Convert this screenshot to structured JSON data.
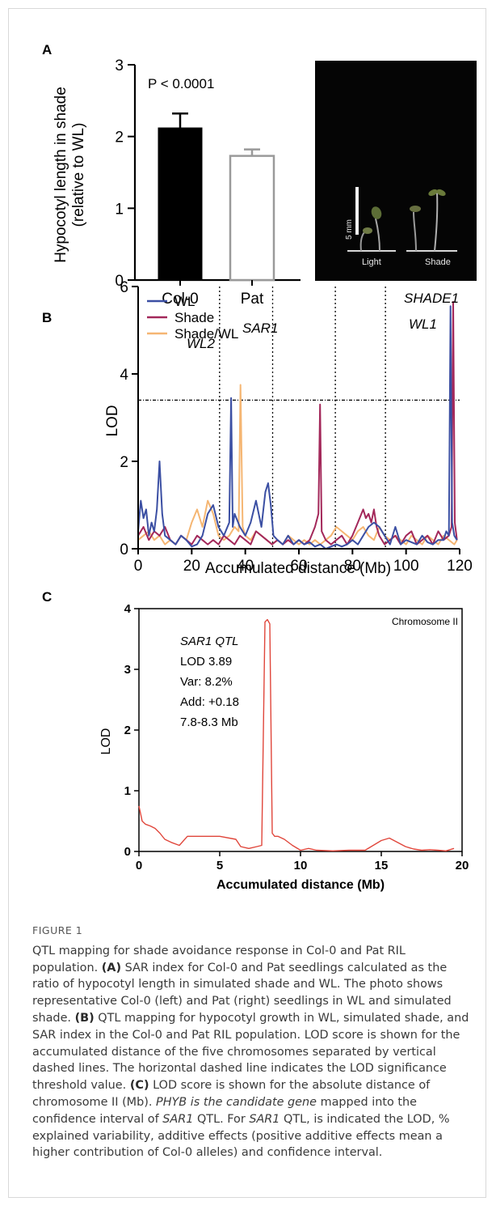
{
  "panel_a": {
    "letter": "A",
    "ylabel_line1": "Hypocotyl length in shade",
    "ylabel_line2": "(relative to WL)",
    "p_value": "P < 0.0001",
    "photo": {
      "scale_label": "5 mm",
      "light_label": "Light",
      "shade_label": "Shade"
    }
  },
  "panel_b": {
    "letter": "B",
    "ylabel": "LOD",
    "xlabel": "Accumulated distance (Mb)",
    "annotations": [
      "WL2",
      "SAR1",
      "SHADE1",
      "WL1"
    ]
  },
  "panel_c": {
    "letter": "C",
    "ylabel": "LOD",
    "xlabel": "Accumulated distance (Mb)",
    "chromosome_label": "Chromosome II",
    "info": [
      "SAR1 QTL",
      "LOD 3.89",
      "Var: 8.2%",
      "Add: +0.18",
      "7.8-8.3 Mb"
    ]
  },
  "chart_data": [
    {
      "type": "bar",
      "categories": [
        "Col-0",
        "Pat"
      ],
      "values": [
        2.12,
        1.73
      ],
      "errors": [
        0.2,
        0.09
      ],
      "fill_colors": [
        "#000000",
        "#ffffff"
      ],
      "ylim": [
        0,
        3
      ],
      "yticks": [
        0,
        1,
        2,
        3
      ]
    },
    {
      "type": "line",
      "xlim": [
        0,
        120
      ],
      "ylim": [
        0,
        6
      ],
      "xticks": [
        0,
        20,
        40,
        60,
        80,
        100,
        120
      ],
      "yticks": [
        0,
        2,
        4,
        6
      ],
      "threshold": 3.4,
      "chromosome_boundaries": [
        30.4,
        50.2,
        73.6,
        92.3
      ],
      "legend_position": "top-left",
      "series": [
        {
          "name": "WL",
          "color": "#3b4fa3",
          "x": [
            0,
            1,
            2,
            3,
            4,
            5,
            6,
            7,
            8,
            9,
            10,
            12,
            14,
            16,
            18,
            20,
            22,
            24,
            26,
            28,
            30,
            32,
            34,
            34.7,
            35.3,
            36,
            38,
            40,
            42,
            44,
            46,
            47.5,
            48.5,
            49.5,
            50.5,
            52,
            54,
            56,
            58,
            60,
            62,
            64,
            66,
            68,
            70,
            72,
            74,
            76,
            78,
            80,
            82,
            84,
            86,
            88,
            90,
            92,
            94,
            96,
            98,
            100,
            102,
            104,
            106,
            108,
            110,
            112,
            114,
            115,
            116,
            116.6,
            117.2,
            118,
            119
          ],
          "y": [
            0.4,
            1.1,
            0.7,
            0.9,
            0.3,
            0.6,
            0.4,
            0.9,
            2.0,
            0.8,
            0.3,
            0.2,
            0.1,
            0.3,
            0.2,
            0.05,
            0.1,
            0.3,
            0.8,
            1.0,
            0.5,
            0.3,
            0.6,
            3.45,
            0.5,
            0.8,
            0.5,
            0.3,
            0.6,
            1.1,
            0.5,
            1.3,
            1.5,
            1.0,
            0.3,
            0.2,
            0.1,
            0.3,
            0.1,
            0.2,
            0.1,
            0.15,
            0.05,
            0.1,
            0.0,
            0.05,
            0.1,
            0.05,
            0.1,
            0.2,
            0.1,
            0.3,
            0.5,
            0.6,
            0.5,
            0.3,
            0.1,
            0.5,
            0.1,
            0.2,
            0.15,
            0.1,
            0.3,
            0.15,
            0.1,
            0.2,
            0.2,
            0.4,
            0.3,
            5.55,
            0.6,
            0.3,
            0.2
          ]
        },
        {
          "name": "Shade",
          "color": "#a3285a",
          "x": [
            0,
            2,
            4,
            6,
            8,
            10,
            12,
            14,
            16,
            18,
            20,
            22,
            24,
            26,
            28,
            30,
            32,
            34,
            36,
            38,
            40,
            42,
            44,
            46,
            48,
            50,
            52,
            54,
            56,
            58,
            60,
            62,
            64,
            66,
            67.3,
            67.9,
            68.5,
            70,
            72,
            74,
            76,
            78,
            80,
            82,
            84,
            85,
            86,
            87,
            88,
            89,
            90,
            92,
            94,
            96,
            98,
            100,
            102,
            104,
            106,
            108,
            110,
            112,
            114,
            116,
            117,
            117.6,
            118.2,
            119
          ],
          "y": [
            0.3,
            0.5,
            0.2,
            0.4,
            0.3,
            0.5,
            0.2,
            0.1,
            0.3,
            0.2,
            0.1,
            0.3,
            0.2,
            0.1,
            0.2,
            0.1,
            0.3,
            0.2,
            0.1,
            0.3,
            0.2,
            0.1,
            0.4,
            0.3,
            0.2,
            0.1,
            0.2,
            0.1,
            0.2,
            0.1,
            0.2,
            0.1,
            0.2,
            0.5,
            0.8,
            3.3,
            0.4,
            0.2,
            0.1,
            0.2,
            0.3,
            0.1,
            0.3,
            0.6,
            0.9,
            0.7,
            0.8,
            0.6,
            0.9,
            0.5,
            0.3,
            0.1,
            0.2,
            0.3,
            0.1,
            0.3,
            0.4,
            0.1,
            0.2,
            0.3,
            0.1,
            0.4,
            0.2,
            0.3,
            0.5,
            5.65,
            0.6,
            0.2
          ]
        },
        {
          "name": "Shade/WL",
          "color": "#f5b673",
          "x": [
            0,
            2,
            4,
            6,
            8,
            10,
            12,
            14,
            16,
            18,
            20,
            22,
            24,
            26,
            28,
            30,
            32,
            34,
            36,
            37.5,
            38.2,
            39,
            40,
            42,
            44,
            46,
            48,
            50,
            52,
            54,
            56,
            58,
            60,
            62,
            64,
            66,
            68,
            70,
            72,
            74,
            76,
            78,
            80,
            82,
            84,
            86,
            88,
            90,
            92,
            94,
            96,
            98,
            100,
            102,
            104,
            106,
            108,
            110,
            112,
            114,
            116,
            118,
            119
          ],
          "y": [
            0.2,
            0.3,
            0.4,
            0.2,
            0.3,
            0.1,
            0.2,
            0.1,
            0.3,
            0.2,
            0.6,
            0.9,
            0.5,
            1.1,
            0.8,
            0.3,
            0.2,
            0.3,
            0.5,
            0.4,
            3.75,
            0.5,
            0.3,
            0.2,
            0.4,
            0.3,
            0.2,
            0.1,
            0.2,
            0.1,
            0.3,
            0.2,
            0.1,
            0.2,
            0.1,
            0.2,
            0.1,
            0.2,
            0.3,
            0.5,
            0.4,
            0.3,
            0.2,
            0.4,
            0.5,
            0.3,
            0.2,
            0.5,
            0.3,
            0.2,
            0.3,
            0.2,
            0.1,
            0.3,
            0.2,
            0.1,
            0.3,
            0.2,
            0.1,
            0.3,
            0.2,
            0.1,
            0.2
          ]
        }
      ]
    },
    {
      "type": "line",
      "xlim": [
        0,
        20
      ],
      "ylim": [
        0,
        4
      ],
      "xticks": [
        0,
        5,
        10,
        15,
        20
      ],
      "yticks": [
        0,
        1,
        2,
        3,
        4
      ],
      "series": [
        {
          "color": "#e0463b",
          "x": [
            0,
            0.2,
            0.4,
            0.7,
            1.0,
            1.3,
            1.6,
            2.0,
            2.5,
            3.0,
            3.5,
            4.0,
            5.0,
            6.0,
            6.3,
            6.8,
            7.3,
            7.6,
            7.8,
            7.95,
            8.1,
            8.25,
            8.4,
            8.6,
            9.0,
            9.5,
            10.0,
            10.5,
            11,
            12,
            13,
            14,
            14.5,
            15,
            15.5,
            16,
            16.5,
            17,
            17.5,
            18,
            18.5,
            19,
            19.5
          ],
          "y": [
            0.75,
            0.5,
            0.45,
            0.42,
            0.38,
            0.3,
            0.2,
            0.15,
            0.1,
            0.25,
            0.25,
            0.25,
            0.25,
            0.2,
            0.08,
            0.05,
            0.08,
            0.1,
            3.78,
            3.82,
            3.75,
            0.3,
            0.25,
            0.25,
            0.2,
            0.1,
            0.02,
            0.05,
            0.02,
            0.01,
            0.02,
            0.02,
            0.1,
            0.18,
            0.22,
            0.15,
            0.08,
            0.04,
            0.02,
            0.03,
            0.02,
            0.01,
            0.05
          ]
        }
      ]
    }
  ],
  "caption": {
    "label": "FIGURE 1",
    "intro": "QTL mapping for shade avoidance response in Col-0 and Pat RIL population.",
    "a_tag": "(A)",
    "a_text": "SAR index for Col-0 and Pat seedlings calculated as the ratio of hypocotyl length in simulated shade and WL. The photo shows representative Col-0 (left) and Pat (right) seedlings in WL and simulated shade.",
    "b_tag": "(B)",
    "b_text": "QTL mapping for hypocotyl growth in WL, simulated shade, and SAR index in the Col-0 and Pat RIL population. LOD score is shown for the accumulated distance of the five chromosomes separated by vertical dashed lines. The horizontal dashed line indicates the LOD significance threshold value.",
    "c_tag": "(C)",
    "c_text_1": "LOD score is shown for the absolute distance of chromosome II (Mb).",
    "c_italic_1": "PHYB is the candidate gene",
    "c_text_2": "mapped into the confidence interval of",
    "c_italic_2": "SAR1",
    "c_text_3": "QTL. For",
    "c_italic_3": "SAR1",
    "c_text_4": "QTL, is indicated the LOD, % explained variability, additive effects (positive additive effects mean a higher contribution of Col-0 alleles) and confidence interval."
  }
}
